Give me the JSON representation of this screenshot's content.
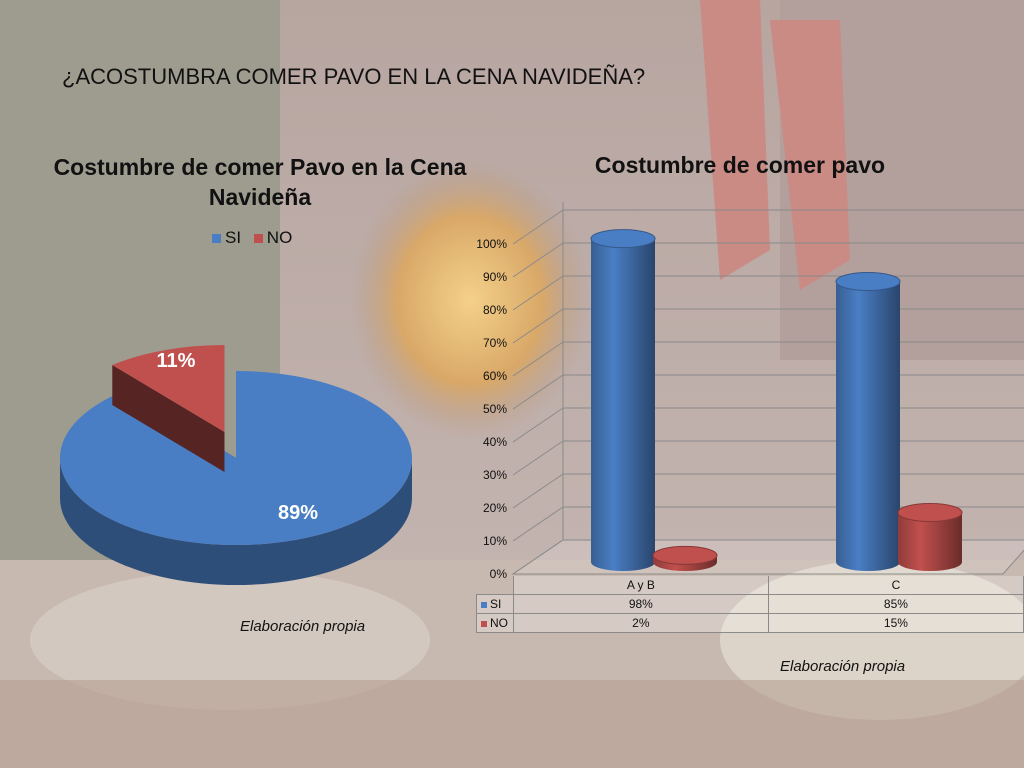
{
  "slide": {
    "title": "¿ACOSTUMBRA COMER PAVO EN LA CENA NAVIDEÑA?"
  },
  "chart_data": [
    {
      "type": "pie",
      "title": "Costumbre de comer Pavo en la Cena Navideña",
      "categories": [
        "SI",
        "NO"
      ],
      "values": [
        89,
        11
      ],
      "data_labels": [
        "89%",
        "11%"
      ],
      "colors": [
        "#4a7ec4",
        "#c0504d"
      ],
      "legend_position": "top",
      "source_note": "Elaboración propia"
    },
    {
      "type": "bar",
      "title": "Costumbre de comer pavo",
      "categories": [
        "A y B",
        "C"
      ],
      "series": [
        {
          "name": "SI",
          "values": [
            98,
            85
          ],
          "labels": [
            "98%",
            "85%"
          ],
          "color": "#4a7ec4"
        },
        {
          "name": "NO",
          "values": [
            2,
            15
          ],
          "labels": [
            "2%",
            "15%"
          ],
          "color": "#c0504d"
        }
      ],
      "y_ticks": [
        "0%",
        "10%",
        "20%",
        "30%",
        "40%",
        "50%",
        "60%",
        "70%",
        "80%",
        "90%",
        "100%"
      ],
      "ylim": [
        0,
        100
      ],
      "grid": true,
      "legend_position": "data table",
      "source_note": "Elaboración propia"
    }
  ]
}
